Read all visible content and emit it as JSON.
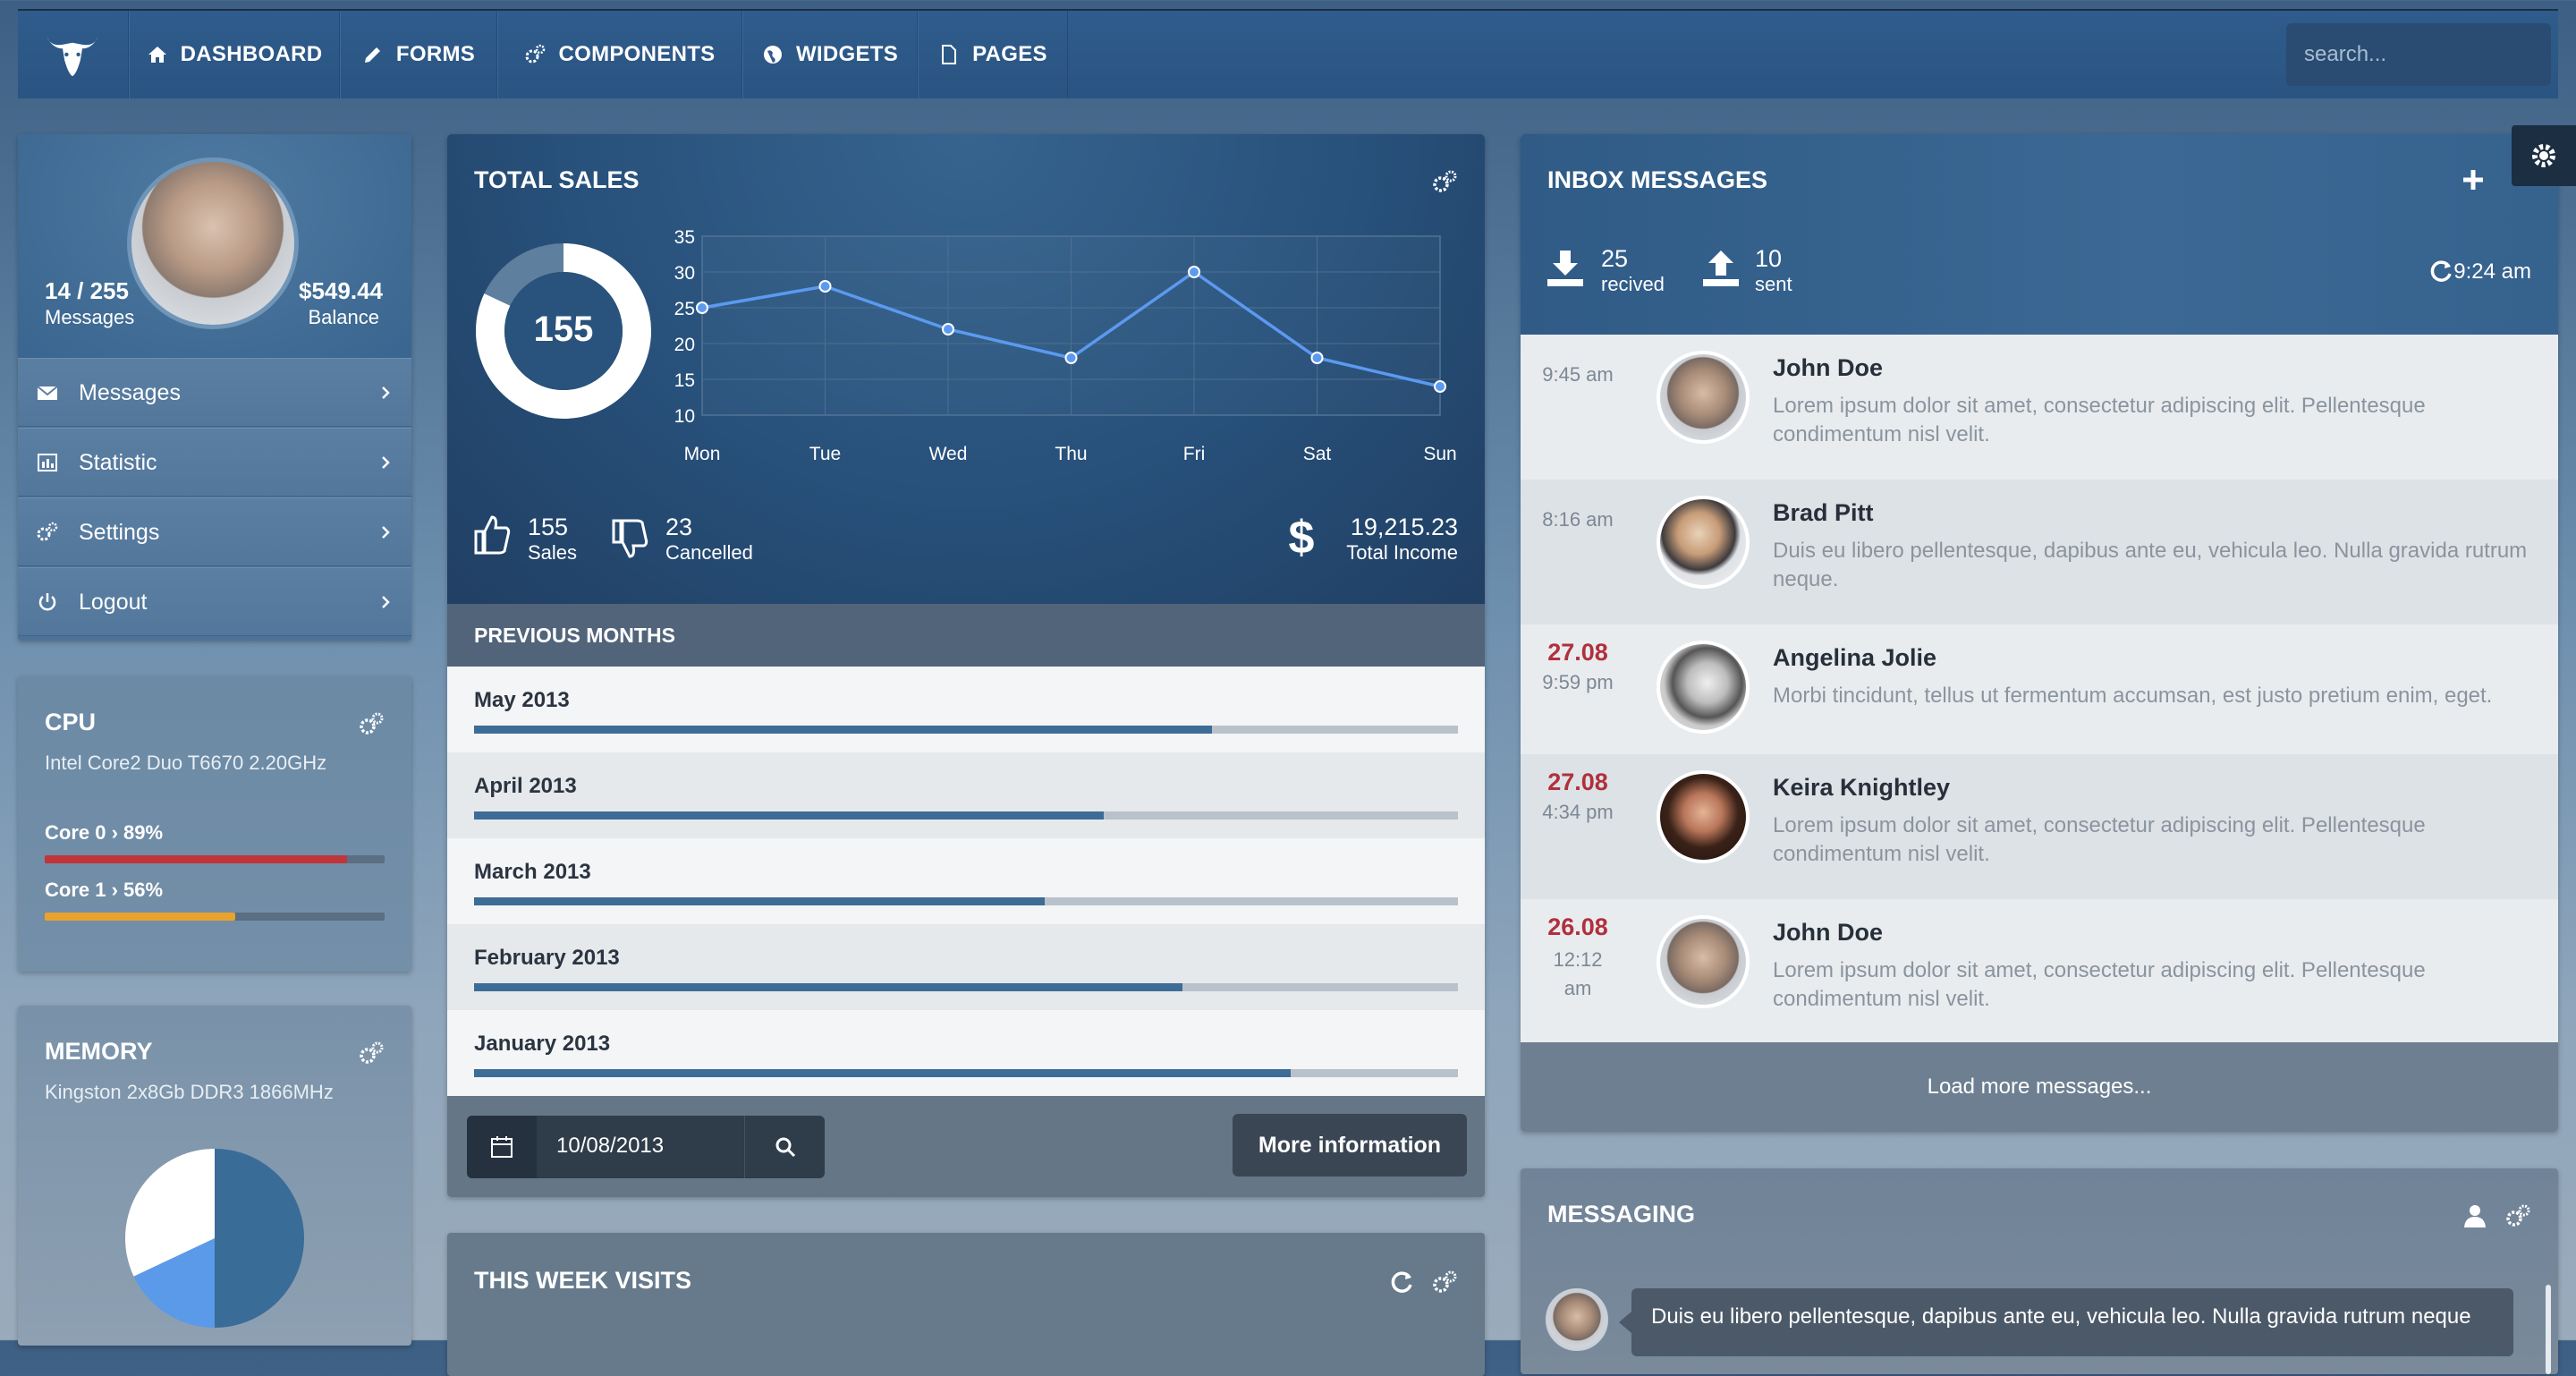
{
  "nav": {
    "items": [
      {
        "label": "DASHBOARD",
        "icon": "home-icon"
      },
      {
        "label": "FORMS",
        "icon": "pencil-icon"
      },
      {
        "label": "COMPONENTS",
        "icon": "gears-icon"
      },
      {
        "label": "WIDGETS",
        "icon": "globe-icon"
      },
      {
        "label": "PAGES",
        "icon": "file-icon"
      }
    ],
    "search_placeholder": "search..."
  },
  "profile": {
    "messages_value": "14 / 255",
    "messages_label": "Messages",
    "balance_value": "$549.44",
    "balance_label": "Balance",
    "menu": [
      {
        "label": "Messages",
        "icon": "envelope-icon"
      },
      {
        "label": "Statistic",
        "icon": "bar-chart-icon"
      },
      {
        "label": "Settings",
        "icon": "gears-icon"
      },
      {
        "label": "Logout",
        "icon": "power-icon"
      }
    ]
  },
  "cpu": {
    "title": "CPU",
    "model": "Intel Core2 Duo T6670 2.20GHz",
    "cores": [
      {
        "label": "Core 0 › 89%",
        "percent": 89,
        "color": "#c0353a"
      },
      {
        "label": "Core 1 › 56%",
        "percent": 56,
        "color": "#e9a32c"
      }
    ]
  },
  "memory": {
    "title": "MEMORY",
    "model": "Kingston 2x8Gb DDR3 1866MHz",
    "pie": [
      {
        "fraction": 0.5,
        "color": "#3a6c98"
      },
      {
        "fraction": 0.18,
        "color": "#5a9ae8"
      },
      {
        "fraction": 0.32,
        "color": "#ffffff"
      }
    ]
  },
  "sales": {
    "title": "TOTAL SALES",
    "donut_value": "155",
    "donut_fraction": 0.82,
    "stats": [
      {
        "value": "155",
        "label": "Sales",
        "icon": "thumbs-up-icon"
      },
      {
        "value": "23",
        "label": "Cancelled",
        "icon": "thumbs-down-icon"
      },
      {
        "value": "19,215.23",
        "label": "Total Income",
        "icon": "dollar-icon"
      }
    ],
    "previous_title": "PREVIOUS MONTHS",
    "months": [
      {
        "label": "May 2013",
        "percent": 75
      },
      {
        "label": "April 2013",
        "percent": 64
      },
      {
        "label": "March 2013",
        "percent": 58
      },
      {
        "label": "February 2013",
        "percent": 72
      },
      {
        "label": "January 2013",
        "percent": 83
      }
    ],
    "date_value": "10/08/2013",
    "more_info": "More information"
  },
  "chart_data": {
    "type": "line",
    "categories": [
      "Mon",
      "Tue",
      "Wed",
      "Thu",
      "Fri",
      "Sat",
      "Sun"
    ],
    "values": [
      25,
      28,
      22,
      18,
      30,
      18,
      14
    ],
    "ylim": [
      10,
      35
    ],
    "yticks": [
      10,
      15,
      20,
      25,
      30,
      35
    ],
    "grid": true,
    "color": "#5b9af0"
  },
  "visits": {
    "title": "THIS WEEK VISITS"
  },
  "inbox": {
    "title": "INBOX MESSAGES",
    "received_count": "25",
    "received_label": "recived",
    "sent_count": "10",
    "sent_label": "sent",
    "time": "9:24 am",
    "messages": [
      {
        "date": "",
        "time": "9:45 am",
        "name": "John Doe",
        "text": "Lorem ipsum dolor sit amet, consectetur adipiscing elit. Pellentesque condimentum nisl velit."
      },
      {
        "date": "",
        "time": "8:16 am",
        "name": "Brad Pitt",
        "text": "Duis eu libero pellentesque, dapibus ante eu, vehicula leo. Nulla gravida rutrum neque."
      },
      {
        "date": "27.08",
        "time": "9:59 pm",
        "name": "Angelina Jolie",
        "text": "Morbi tincidunt, tellus ut fermentum accumsan, est justo pretium enim, eget."
      },
      {
        "date": "27.08",
        "time": "4:34 pm",
        "name": "Keira Knightley",
        "text": "Lorem ipsum dolor sit amet, consectetur adipiscing elit. Pellentesque condimentum nisl velit."
      },
      {
        "date": "26.08",
        "time": "12:12 am",
        "name": "John Doe",
        "text": "Lorem ipsum dolor sit amet, consectetur adipiscing elit. Pellentesque condimentum nisl velit."
      }
    ],
    "load_more": "Load more messages..."
  },
  "messaging": {
    "title": "MESSAGING",
    "bubble": "Duis eu libero pellentesque, dapibus ante eu, vehicula leo. Nulla gravida rutrum neque"
  }
}
